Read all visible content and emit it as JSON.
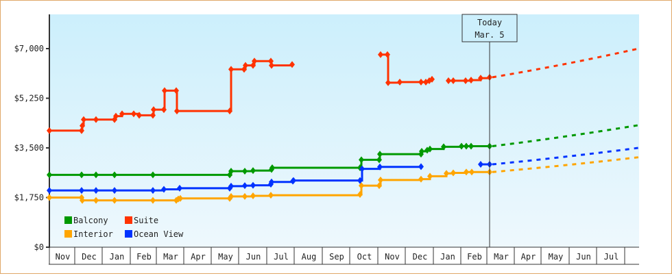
{
  "chart_data": {
    "type": "line",
    "title": "",
    "xlabel": "",
    "ylabel": "",
    "ylim": [
      0,
      8000
    ],
    "y_ticks": [
      "$0",
      "$1,750",
      "$3,500",
      "$5,250",
      "$7,000"
    ],
    "y_tick_values": [
      0,
      1750,
      3500,
      5250,
      7000
    ],
    "x_tick_labels": [
      "Nov",
      "Dec",
      "Jan",
      "Feb",
      "Mar",
      "Apr",
      "May",
      "Jun",
      "Jul",
      "Aug",
      "Sep",
      "Oct",
      "Nov",
      "Dec",
      "Jan",
      "Feb",
      "Mar",
      "Apr",
      "May",
      "Jun",
      "Jul"
    ],
    "today_marker": {
      "line1": "Today",
      "line2": "Mar. 5"
    },
    "grid": false,
    "legend_position": "lower-left inside",
    "series": [
      {
        "name": "Balcony",
        "color": "#009900",
        "history": [
          [
            71,
            2550
          ],
          [
            118,
            2550
          ],
          [
            139,
            2550
          ],
          [
            166,
            2550
          ],
          [
            222,
            2550
          ],
          [
            334,
            2550
          ],
          [
            336,
            2680
          ],
          [
            356,
            2680
          ],
          [
            368,
            2700
          ],
          [
            395,
            2740
          ],
          [
            396,
            2800
          ],
          [
            524,
            2800
          ],
          [
            526,
            3080
          ],
          [
            552,
            3080
          ],
          [
            553,
            3280
          ],
          [
            613,
            3280
          ],
          [
            614,
            3380
          ],
          [
            622,
            3420
          ],
          [
            626,
            3460
          ],
          [
            646,
            3540
          ],
          [
            672,
            3560
          ],
          [
            679,
            3560
          ],
          [
            686,
            3560
          ],
          [
            713,
            3560
          ]
        ],
        "forecast_end": 4300
      },
      {
        "name": "Suite",
        "color": "#ff3300",
        "history_segments": [
          [
            [
              71,
              4110
            ],
            [
              118,
              4110
            ],
            [
              119,
              4280
            ],
            [
              121,
              4500
            ],
            [
              139,
              4500
            ],
            [
              166,
              4500
            ],
            [
              168,
              4620
            ],
            [
              177,
              4700
            ],
            [
              194,
              4700
            ],
            [
              202,
              4650
            ],
            [
              222,
              4650
            ],
            [
              223,
              4850
            ],
            [
              238,
              4850
            ],
            [
              239,
              5520
            ],
            [
              256,
              5520
            ],
            [
              257,
              4800
            ],
            [
              334,
              4800
            ],
            [
              336,
              6270
            ],
            [
              355,
              6270
            ],
            [
              357,
              6410
            ],
            [
              368,
              6410
            ],
            [
              370,
              6560
            ],
            [
              394,
              6560
            ],
            [
              395,
              6410
            ],
            [
              425,
              6440
            ]
          ],
          [
            [
              554,
              6790
            ],
            [
              564,
              6790
            ],
            [
              565,
              5800
            ],
            [
              582,
              5820
            ],
            [
              613,
              5820
            ],
            [
              620,
              5820
            ],
            [
              625,
              5870
            ],
            [
              629,
              5920
            ]
          ],
          [
            [
              653,
              5870
            ],
            [
              660,
              5870
            ],
            [
              678,
              5870
            ],
            [
              686,
              5890
            ],
            [
              700,
              5960
            ],
            [
              713,
              5990
            ]
          ]
        ],
        "forecast_end": 7000
      },
      {
        "name": "Interior",
        "color": "#ffa500",
        "history": [
          [
            71,
            1750
          ],
          [
            118,
            1750
          ],
          [
            119,
            1650
          ],
          [
            139,
            1650
          ],
          [
            166,
            1650
          ],
          [
            222,
            1650
          ],
          [
            256,
            1650
          ],
          [
            259,
            1700
          ],
          [
            262,
            1720
          ],
          [
            334,
            1720
          ],
          [
            336,
            1790
          ],
          [
            356,
            1790
          ],
          [
            368,
            1810
          ],
          [
            394,
            1830
          ],
          [
            524,
            1860
          ],
          [
            526,
            2170
          ],
          [
            552,
            2170
          ],
          [
            554,
            2370
          ],
          [
            613,
            2400
          ],
          [
            626,
            2500
          ],
          [
            650,
            2600
          ],
          [
            660,
            2620
          ],
          [
            679,
            2650
          ],
          [
            687,
            2650
          ],
          [
            713,
            2650
          ]
        ],
        "forecast_end": 3170
      },
      {
        "name": "Ocean View",
        "color": "#0033ff",
        "history_segments": [
          [
            [
              71,
              2000
            ],
            [
              118,
              2000
            ],
            [
              139,
              2000
            ],
            [
              166,
              2000
            ],
            [
              222,
              2000
            ],
            [
              238,
              2040
            ],
            [
              261,
              2080
            ],
            [
              334,
              2080
            ],
            [
              336,
              2150
            ],
            [
              356,
              2170
            ],
            [
              368,
              2180
            ],
            [
              394,
              2220
            ],
            [
              395,
              2300
            ],
            [
              426,
              2330
            ],
            [
              427,
              2350
            ],
            [
              524,
              2350
            ],
            [
              527,
              2760
            ],
            [
              553,
              2830
            ],
            [
              613,
              2840
            ]
          ],
          [
            [
              700,
              2920
            ],
            [
              713,
              2920
            ]
          ]
        ],
        "forecast_end": 3500
      }
    ]
  },
  "legend": {
    "items": [
      {
        "label": "Balcony",
        "color": "#009900"
      },
      {
        "label": "Suite",
        "color": "#ff3300"
      },
      {
        "label": "Interior",
        "color": "#ffa500"
      },
      {
        "label": "Ocean View",
        "color": "#0033ff"
      }
    ]
  },
  "colors": {
    "frame_border": "#e0a868",
    "plot_bg_top": "#cceffc",
    "plot_bg_bottom": "#eef8fd",
    "axis": "#333333"
  }
}
